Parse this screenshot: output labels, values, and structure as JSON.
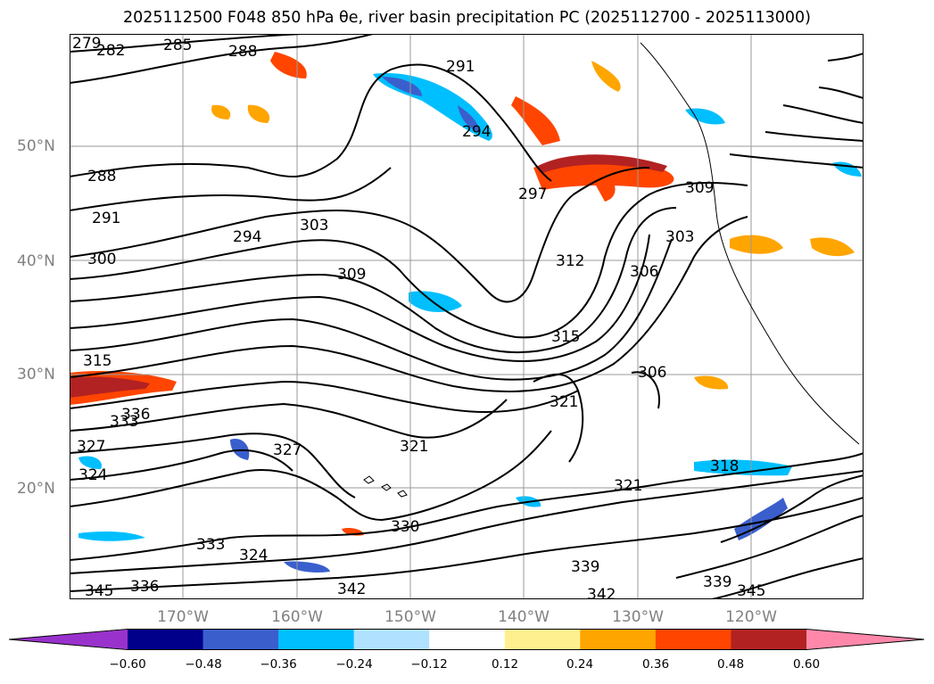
{
  "title": "2025112500 F048 850 hPa θe, river basin precipitation PC (2025112700 - 2025113000)",
  "map": {
    "lat_labels": [
      "50°N",
      "40°N",
      "30°N",
      "20°N"
    ],
    "lon_labels": [
      "170°W",
      "160°W",
      "150°W",
      "140°W",
      "130°W",
      "120°W"
    ],
    "contour_labels": [
      "279",
      "282",
      "285",
      "288",
      "288",
      "291",
      "291",
      "294",
      "294",
      "297",
      "300",
      "303",
      "303",
      "306",
      "306",
      "309",
      "309",
      "312",
      "315",
      "315",
      "318",
      "321",
      "321",
      "321",
      "324",
      "324",
      "327",
      "327",
      "330",
      "333",
      "333",
      "336",
      "336",
      "339",
      "339",
      "342",
      "342",
      "345",
      "345"
    ]
  },
  "colorbar": {
    "ticks": [
      "−0.60",
      "−0.48",
      "−0.36",
      "−0.24",
      "−0.12",
      "0.12",
      "0.24",
      "0.36",
      "0.48",
      "0.60"
    ],
    "colors": [
      "#9932cc",
      "#00008b",
      "#3a5fcd",
      "#00bfff",
      "#b0e2ff",
      "#ffffff",
      "#fff08f",
      "#ffa500",
      "#ff4500",
      "#b22222",
      "#ff88aa"
    ]
  }
}
